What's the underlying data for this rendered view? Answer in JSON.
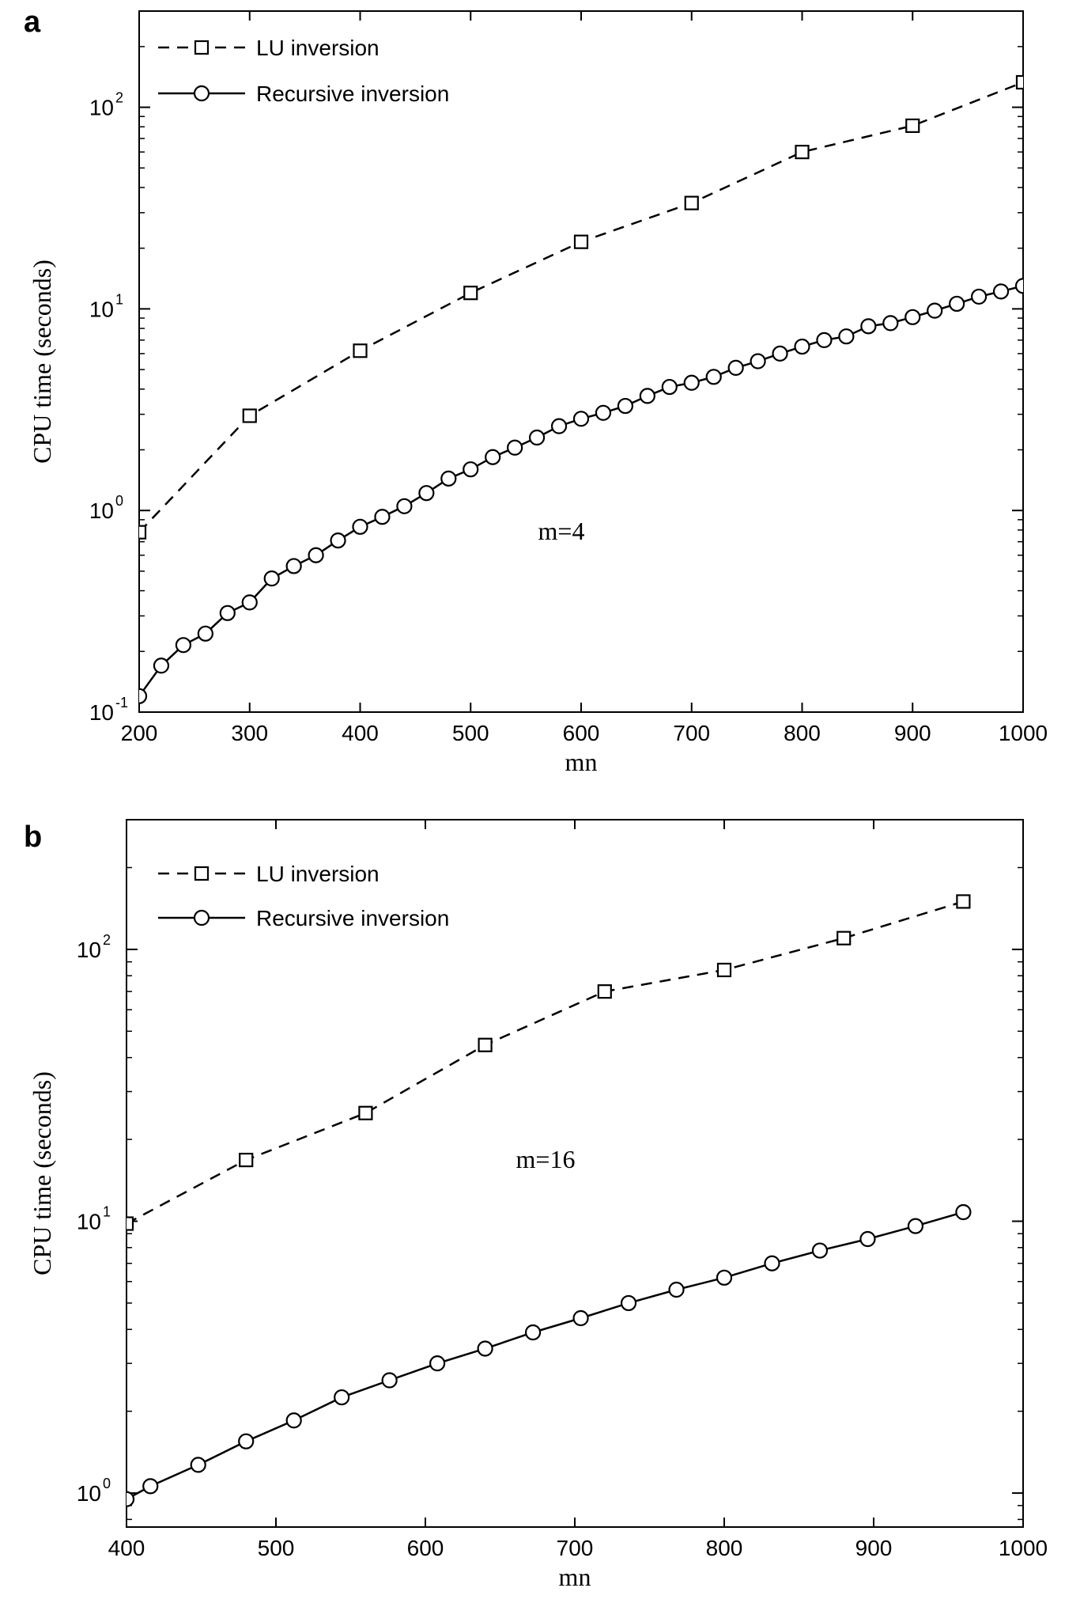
{
  "chart_data": [
    {
      "panel": "a",
      "type": "line",
      "xlabel": "mn",
      "ylabel": "CPU time (seconds)",
      "xlim": [
        200,
        1000
      ],
      "ylim": [
        0.1,
        300
      ],
      "yscale": "log",
      "xticks": [
        200,
        300,
        400,
        500,
        600,
        700,
        800,
        900,
        1000
      ],
      "yticks": [
        {
          "value": 0.1,
          "base": "10",
          "exp": "-1"
        },
        {
          "value": 1,
          "base": "10",
          "exp": "0"
        },
        {
          "value": 10,
          "base": "10",
          "exp": "1"
        },
        {
          "value": 100,
          "base": "10",
          "exp": "2"
        }
      ],
      "annotation": "m=4",
      "legend_position": "top-left",
      "series": [
        {
          "name": "LU inversion",
          "style": "dashed",
          "marker": "square",
          "marker_every": 1,
          "x": [
            200,
            300,
            400,
            500,
            600,
            700,
            800,
            900,
            1000
          ],
          "y": [
            0.78,
            2.95,
            6.2,
            12.0,
            21.5,
            33.5,
            60.0,
            81.0,
            133.0
          ]
        },
        {
          "name": "Recursive inversion",
          "style": "solid",
          "marker": "circle",
          "marker_every": 1,
          "x": [
            200,
            220,
            240,
            260,
            280,
            300,
            320,
            340,
            360,
            380,
            400,
            420,
            440,
            460,
            480,
            500,
            520,
            540,
            560,
            580,
            600,
            620,
            640,
            660,
            680,
            700,
            720,
            740,
            760,
            780,
            800,
            820,
            840,
            860,
            880,
            900,
            920,
            940,
            960,
            980,
            1000
          ],
          "y": [
            0.12,
            0.17,
            0.215,
            0.245,
            0.31,
            0.35,
            0.46,
            0.53,
            0.6,
            0.71,
            0.83,
            0.93,
            1.05,
            1.22,
            1.44,
            1.6,
            1.84,
            2.05,
            2.3,
            2.62,
            2.85,
            3.05,
            3.3,
            3.7,
            4.1,
            4.3,
            4.6,
            5.1,
            5.5,
            6.0,
            6.5,
            7.0,
            7.3,
            8.2,
            8.5,
            9.1,
            9.8,
            10.6,
            11.5,
            12.2,
            13.0
          ]
        }
      ]
    },
    {
      "panel": "b",
      "type": "line",
      "xlabel": "mn",
      "ylabel": "CPU time (seconds)",
      "xlim": [
        400,
        1000
      ],
      "ylim": [
        0.75,
        300
      ],
      "yscale": "log",
      "xticks": [
        400,
        500,
        600,
        700,
        800,
        900,
        1000
      ],
      "yticks": [
        {
          "value": 1,
          "base": "10",
          "exp": "0"
        },
        {
          "value": 10,
          "base": "10",
          "exp": "1"
        },
        {
          "value": 100,
          "base": "10",
          "exp": "2"
        }
      ],
      "annotation": "m=16",
      "legend_position": "top-left",
      "series": [
        {
          "name": "LU inversion",
          "style": "dashed",
          "marker": "square",
          "marker_every": 1,
          "x": [
            400,
            480,
            560,
            640,
            720,
            800,
            880,
            960
          ],
          "y": [
            9.8,
            16.8,
            25.0,
            44.5,
            70.0,
            84.0,
            110.0,
            150.0
          ]
        },
        {
          "name": "Recursive inversion",
          "style": "solid",
          "marker": "circle",
          "marker_every": 1,
          "x": [
            400,
            416,
            448,
            480,
            512,
            544,
            576,
            608,
            640,
            672,
            704,
            736,
            768,
            800,
            832,
            864,
            896,
            928,
            960
          ],
          "y": [
            0.95,
            1.06,
            1.27,
            1.55,
            1.85,
            2.25,
            2.6,
            3.0,
            3.4,
            3.9,
            4.4,
            5.0,
            5.6,
            6.2,
            7.0,
            7.8,
            8.6,
            9.6,
            10.8
          ]
        }
      ]
    }
  ]
}
